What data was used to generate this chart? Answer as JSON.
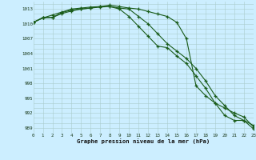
{
  "x": [
    0,
    1,
    2,
    3,
    4,
    5,
    6,
    7,
    8,
    9,
    10,
    11,
    12,
    13,
    14,
    15,
    16,
    17,
    18,
    19,
    20,
    21,
    22,
    23
  ],
  "line1": [
    1010.3,
    1011.2,
    1011.3,
    1012.3,
    1012.8,
    1013.0,
    1013.2,
    1013.4,
    1013.5,
    1013.2,
    1013.0,
    1011.5,
    1010.0,
    1008.0,
    1006.0,
    1004.5,
    1003.0,
    1001.0,
    998.5,
    995.5,
    993.5,
    991.5,
    990.5,
    989.5
  ],
  "line2": [
    1010.3,
    1011.2,
    1011.8,
    1012.4,
    1013.0,
    1013.2,
    1013.4,
    1013.5,
    1013.5,
    1013.0,
    1011.5,
    1009.5,
    1007.5,
    1005.5,
    1005.2,
    1003.5,
    1002.0,
    999.5,
    997.0,
    994.0,
    993.0,
    992.0,
    991.2,
    989.2
  ],
  "line3": [
    1010.3,
    1011.3,
    1011.3,
    1012.1,
    1012.6,
    1013.0,
    1013.2,
    1013.5,
    1013.8,
    1013.5,
    1013.2,
    1013.0,
    1012.5,
    1012.0,
    1011.5,
    1010.3,
    1007.0,
    997.5,
    995.5,
    994.0,
    991.5,
    990.5,
    990.5,
    988.8
  ],
  "line_color": "#1a5c1a",
  "bg_color": "#cceeff",
  "grid_major_color": "#aacccc",
  "grid_minor_color": "#bbdddd",
  "xlabel": "Graphe pression niveau de la mer (hPa)",
  "ylabel_ticks": [
    989,
    992,
    995,
    998,
    1001,
    1004,
    1007,
    1010,
    1013
  ],
  "xlim": [
    0,
    23
  ],
  "ylim": [
    988.0,
    1014.5
  ],
  "xticks": [
    0,
    1,
    2,
    3,
    4,
    5,
    6,
    7,
    8,
    9,
    10,
    11,
    12,
    13,
    14,
    15,
    16,
    17,
    18,
    19,
    20,
    21,
    22,
    23
  ]
}
